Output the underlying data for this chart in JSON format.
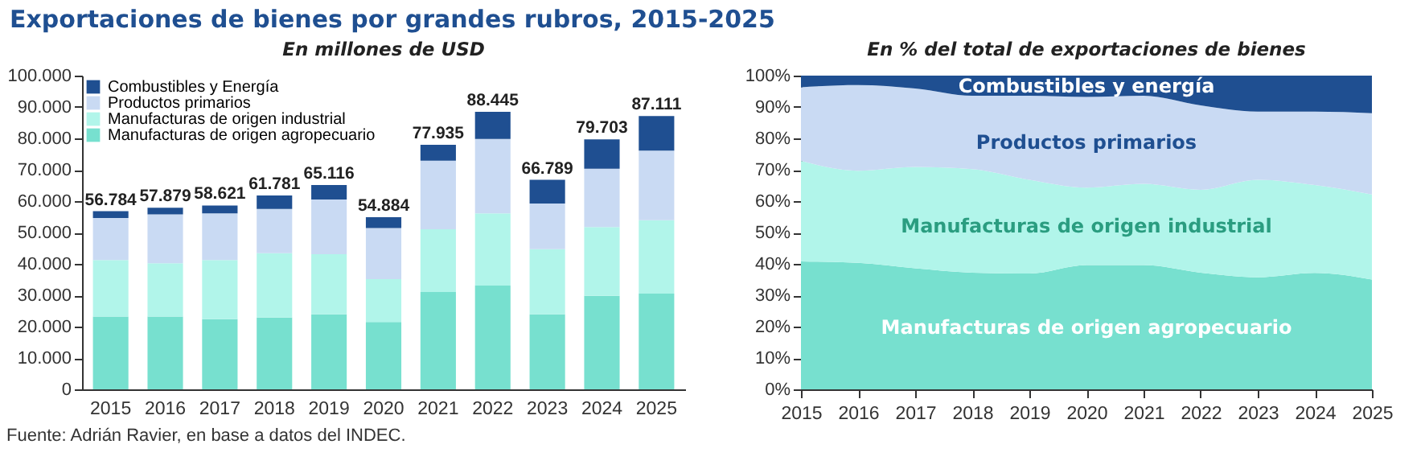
{
  "chart_data": [
    {
      "type": "bar",
      "stacked": true,
      "title": "Exportaciones de bienes por grandes rubros, 2015-2025",
      "subtitle": "En millones de USD",
      "annotations": [
        "Fuente: Adrián Ravier, en base a datos del INDEC."
      ],
      "categories": [
        "2015",
        "2016",
        "2017",
        "2018",
        "2019",
        "2020",
        "2021",
        "2022",
        "2023",
        "2024",
        "2025"
      ],
      "series": [
        {
          "name": "Manufacturas de origen agropecuario",
          "color": "#77e0cf",
          "values": [
            23200,
            23200,
            22400,
            22900,
            23900,
            21500,
            31000,
            33100,
            23900,
            29800,
            30500
          ]
        },
        {
          "name": "Manufacturas de origen industrial",
          "color": "#b1f5ea",
          "values": [
            18000,
            17000,
            18800,
            20500,
            19200,
            13600,
            20000,
            23000,
            20800,
            21900,
            23400
          ]
        },
        {
          "name": "Productos primarios",
          "color": "#c9daf3",
          "values": [
            13400,
            15600,
            14900,
            14100,
            17400,
            16300,
            21900,
            23700,
            14500,
            18600,
            22200
          ]
        },
        {
          "name": "Combustibles y Energía",
          "color": "#1f4f91",
          "values": [
            2184,
            2079,
            2521,
            4281,
            4616,
            3484,
            5035,
            8645,
            7589,
            9403,
            11011
          ]
        }
      ],
      "totals": [
        "56.784",
        "57.879",
        "58.621",
        "61.781",
        "65.116",
        "54.884",
        "77.935",
        "88.445",
        "66.789",
        "79.703",
        "87.111"
      ],
      "ylim": [
        0,
        100000
      ],
      "yticks": [
        {
          "value": 0,
          "label": "0"
        },
        {
          "value": 10000,
          "label": "10.000"
        },
        {
          "value": 20000,
          "label": "20.000"
        },
        {
          "value": 30000,
          "label": "30.000"
        },
        {
          "value": 40000,
          "label": "40.000"
        },
        {
          "value": 50000,
          "label": "50.000"
        },
        {
          "value": 60000,
          "label": "60.000"
        },
        {
          "value": 70000,
          "label": "70.000"
        },
        {
          "value": 80000,
          "label": "80.000"
        },
        {
          "value": 90000,
          "label": "90.000"
        },
        {
          "value": 100000,
          "label": "100.000"
        }
      ],
      "legend": "top left"
    },
    {
      "type": "area",
      "stacked": true,
      "subtitle": "En % del total de exportaciones de bienes",
      "x": [
        2015,
        2016,
        2017,
        2018,
        2019,
        2020,
        2021,
        2022,
        2023,
        2024,
        2025
      ],
      "series": [
        {
          "name": "Manufacturas de origen agropecuario",
          "color": "#77e0cf",
          "values": [
            40.8,
            40.3,
            38.6,
            37.2,
            36.9,
            39.6,
            39.6,
            37.2,
            35.7,
            37.1,
            35.0
          ]
        },
        {
          "name": "Manufacturas de origen industrial",
          "color": "#b1f5ea",
          "values": [
            32.0,
            29.4,
            32.3,
            33.0,
            29.9,
            24.7,
            25.9,
            26.4,
            31.1,
            28.0,
            27.1
          ]
        },
        {
          "name": "Productos primarios",
          "color": "#c9daf3",
          "values": [
            23.5,
            27.3,
            25.0,
            23.4,
            26.8,
            28.9,
            28.1,
            26.9,
            21.7,
            23.4,
            25.9
          ]
        },
        {
          "name": "Combustibles y energía",
          "color": "#1f4f91",
          "values": [
            3.7,
            3.0,
            4.1,
            6.4,
            6.4,
            6.8,
            6.4,
            9.5,
            11.5,
            11.5,
            12.0
          ]
        }
      ],
      "xlim": [
        2015,
        2025
      ],
      "xticks": [
        2015,
        2016,
        2017,
        2018,
        2019,
        2020,
        2021,
        2022,
        2023,
        2024,
        2025
      ],
      "ylim": [
        0,
        100
      ],
      "yticks": [
        {
          "value": 0,
          "label": "0%"
        },
        {
          "value": 10,
          "label": "10%"
        },
        {
          "value": 20,
          "label": "20%"
        },
        {
          "value": 30,
          "label": "30%"
        },
        {
          "value": 40,
          "label": "40%"
        },
        {
          "value": 50,
          "label": "50%"
        },
        {
          "value": 60,
          "label": "60%"
        },
        {
          "value": 70,
          "label": "70%"
        },
        {
          "value": 80,
          "label": "80%"
        },
        {
          "value": 90,
          "label": "90%"
        },
        {
          "value": 100,
          "label": "100%"
        }
      ],
      "legend": false
    }
  ]
}
